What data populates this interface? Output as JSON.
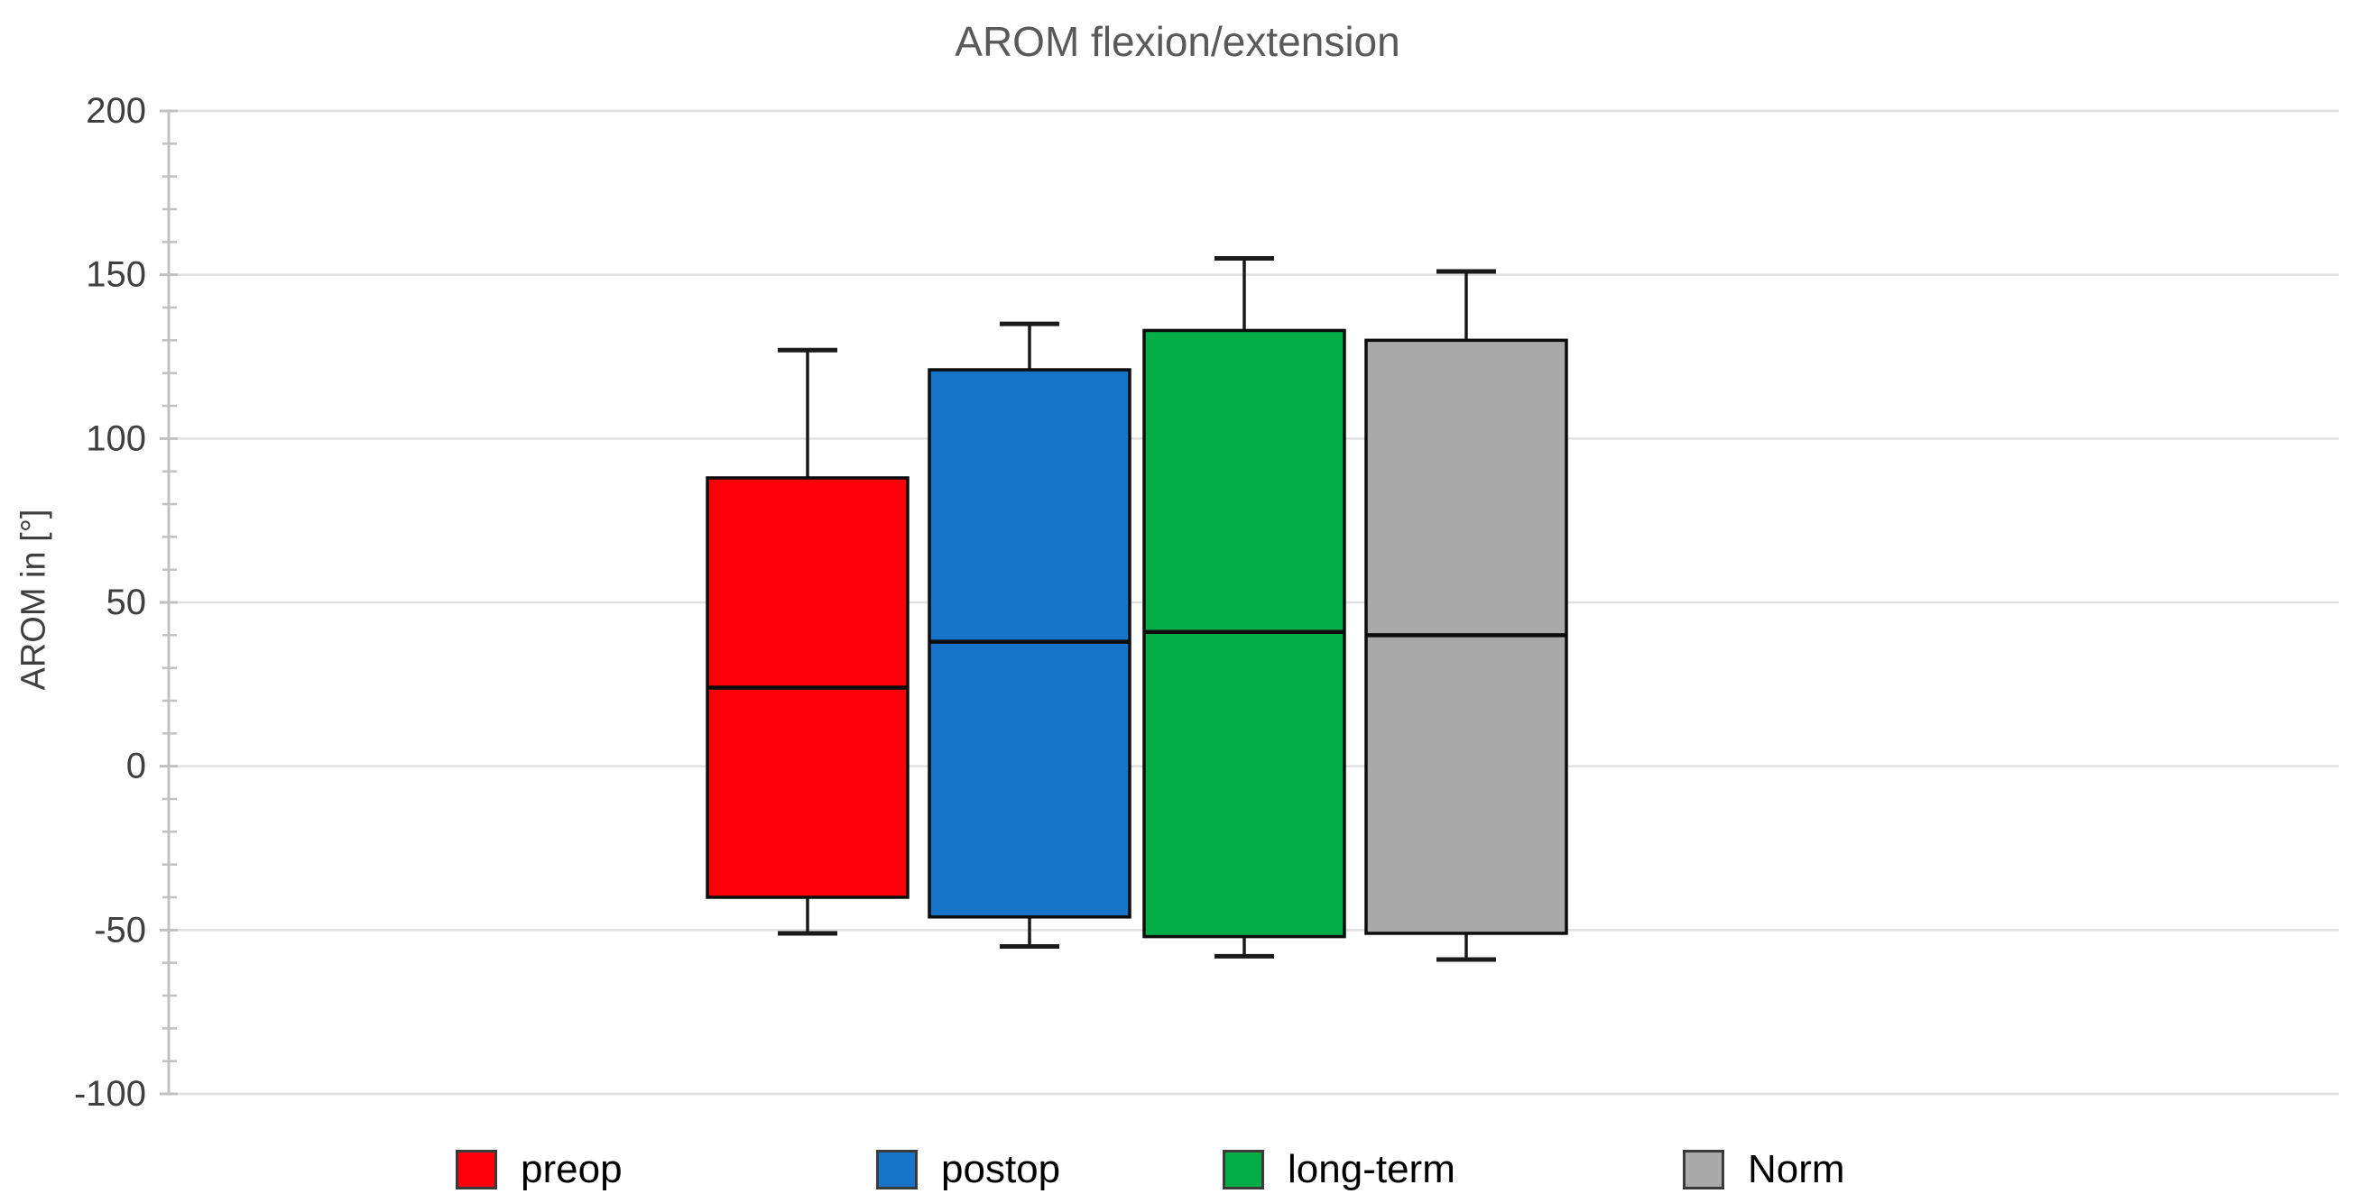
{
  "title": "AROM flexion/extension",
  "y_axis": {
    "label": "AROM in [°]",
    "min": -100,
    "max": 200,
    "major_ticks": [
      200,
      150,
      100,
      50,
      0,
      -50,
      -100
    ],
    "minor_step": 10
  },
  "colors": {
    "grid": "#E0E0E0",
    "axis": "#C1C1C1",
    "box_border": "#0D0D0D",
    "whisker": "#1A1A1A",
    "title_text": "#595959",
    "tick_text": "#3F3F3F",
    "legend_swatch_border": "#3A3A3A"
  },
  "chart_data": {
    "type": "boxplot",
    "title": "AROM flexion/extension",
    "xlabel": "",
    "ylabel": "AROM in [°]",
    "ylim": [
      -100,
      200
    ],
    "grid": true,
    "legend_position": "bottom",
    "categories": [
      "preop",
      "postop",
      "long-term",
      "Norm"
    ],
    "series": [
      {
        "name": "preop",
        "color": "#FD0009",
        "whisker_low": -51,
        "q1": -40,
        "median": 24,
        "q3": 88,
        "whisker_high": 127
      },
      {
        "name": "postop",
        "color": "#1874C9",
        "whisker_low": -55,
        "q1": -46,
        "median": 38,
        "q3": 121,
        "whisker_high": 135
      },
      {
        "name": "long-term",
        "color": "#05AD47",
        "whisker_low": -58,
        "q1": -52,
        "median": 41,
        "q3": 133,
        "whisker_high": 155
      },
      {
        "name": "Norm",
        "color": "#A9A9A9",
        "whisker_low": -59,
        "q1": -51,
        "median": 40,
        "q3": 130,
        "whisker_high": 151
      }
    ]
  }
}
